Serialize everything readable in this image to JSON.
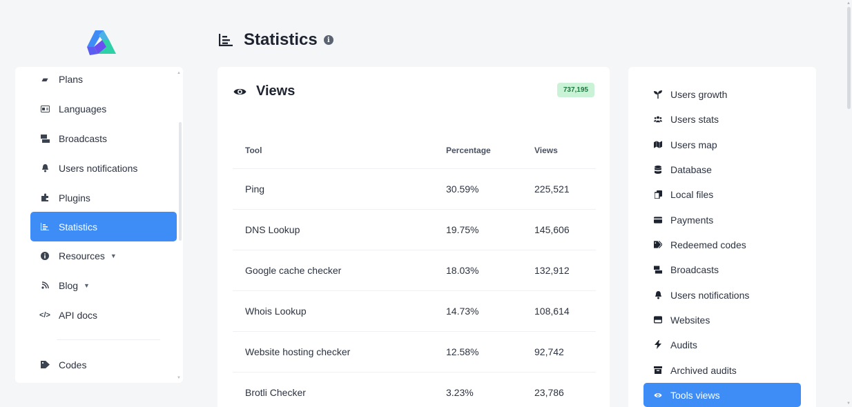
{
  "page": {
    "title": "Statistics",
    "info_icon": "info-icon"
  },
  "sidebar": {
    "items": [
      {
        "label": "Plans",
        "icon": "box-icon"
      },
      {
        "label": "Languages",
        "icon": "language-icon"
      },
      {
        "label": "Broadcasts",
        "icon": "broadcast-icon"
      },
      {
        "label": "Users notifications",
        "icon": "bell-icon"
      },
      {
        "label": "Plugins",
        "icon": "puzzle-icon"
      },
      {
        "label": "Statistics",
        "icon": "chart-icon",
        "active": true
      },
      {
        "label": "Resources",
        "icon": "info-icon",
        "has_caret": true
      },
      {
        "label": "Blog",
        "icon": "blog-icon",
        "has_caret": true
      },
      {
        "label": "API docs",
        "icon": "code-icon"
      },
      {
        "label": "Codes",
        "icon": "tag-icon"
      }
    ]
  },
  "views": {
    "title": "Views",
    "total_badge": "737,195",
    "columns": [
      "Tool",
      "Percentage",
      "Views"
    ],
    "rows": [
      {
        "tool": "Ping",
        "percentage": "30.59%",
        "views": "225,521"
      },
      {
        "tool": "DNS Lookup",
        "percentage": "19.75%",
        "views": "145,606"
      },
      {
        "tool": "Google cache checker",
        "percentage": "18.03%",
        "views": "132,912"
      },
      {
        "tool": "Whois Lookup",
        "percentage": "14.73%",
        "views": "108,614"
      },
      {
        "tool": "Website hosting checker",
        "percentage": "12.58%",
        "views": "92,742"
      },
      {
        "tool": "Brotli Checker",
        "percentage": "3.23%",
        "views": "23,786"
      }
    ]
  },
  "stats_menu": {
    "items": [
      {
        "label": "Users growth",
        "icon": "seedling-icon"
      },
      {
        "label": "Users stats",
        "icon": "users-icon"
      },
      {
        "label": "Users map",
        "icon": "map-icon"
      },
      {
        "label": "Database",
        "icon": "database-icon"
      },
      {
        "label": "Local files",
        "icon": "copy-icon"
      },
      {
        "label": "Payments",
        "icon": "credit-card-icon"
      },
      {
        "label": "Redeemed codes",
        "icon": "tags-icon"
      },
      {
        "label": "Broadcasts",
        "icon": "broadcast-icon"
      },
      {
        "label": "Users notifications",
        "icon": "bell-icon"
      },
      {
        "label": "Websites",
        "icon": "window-icon"
      },
      {
        "label": "Audits",
        "icon": "bolt-icon"
      },
      {
        "label": "Archived audits",
        "icon": "archive-icon"
      },
      {
        "label": "Tools views",
        "icon": "eye-icon",
        "active": true
      }
    ]
  },
  "colors": {
    "accent": "#3e8cf5",
    "badge_bg": "#c9f2d6",
    "badge_text": "#1c7a3e"
  }
}
